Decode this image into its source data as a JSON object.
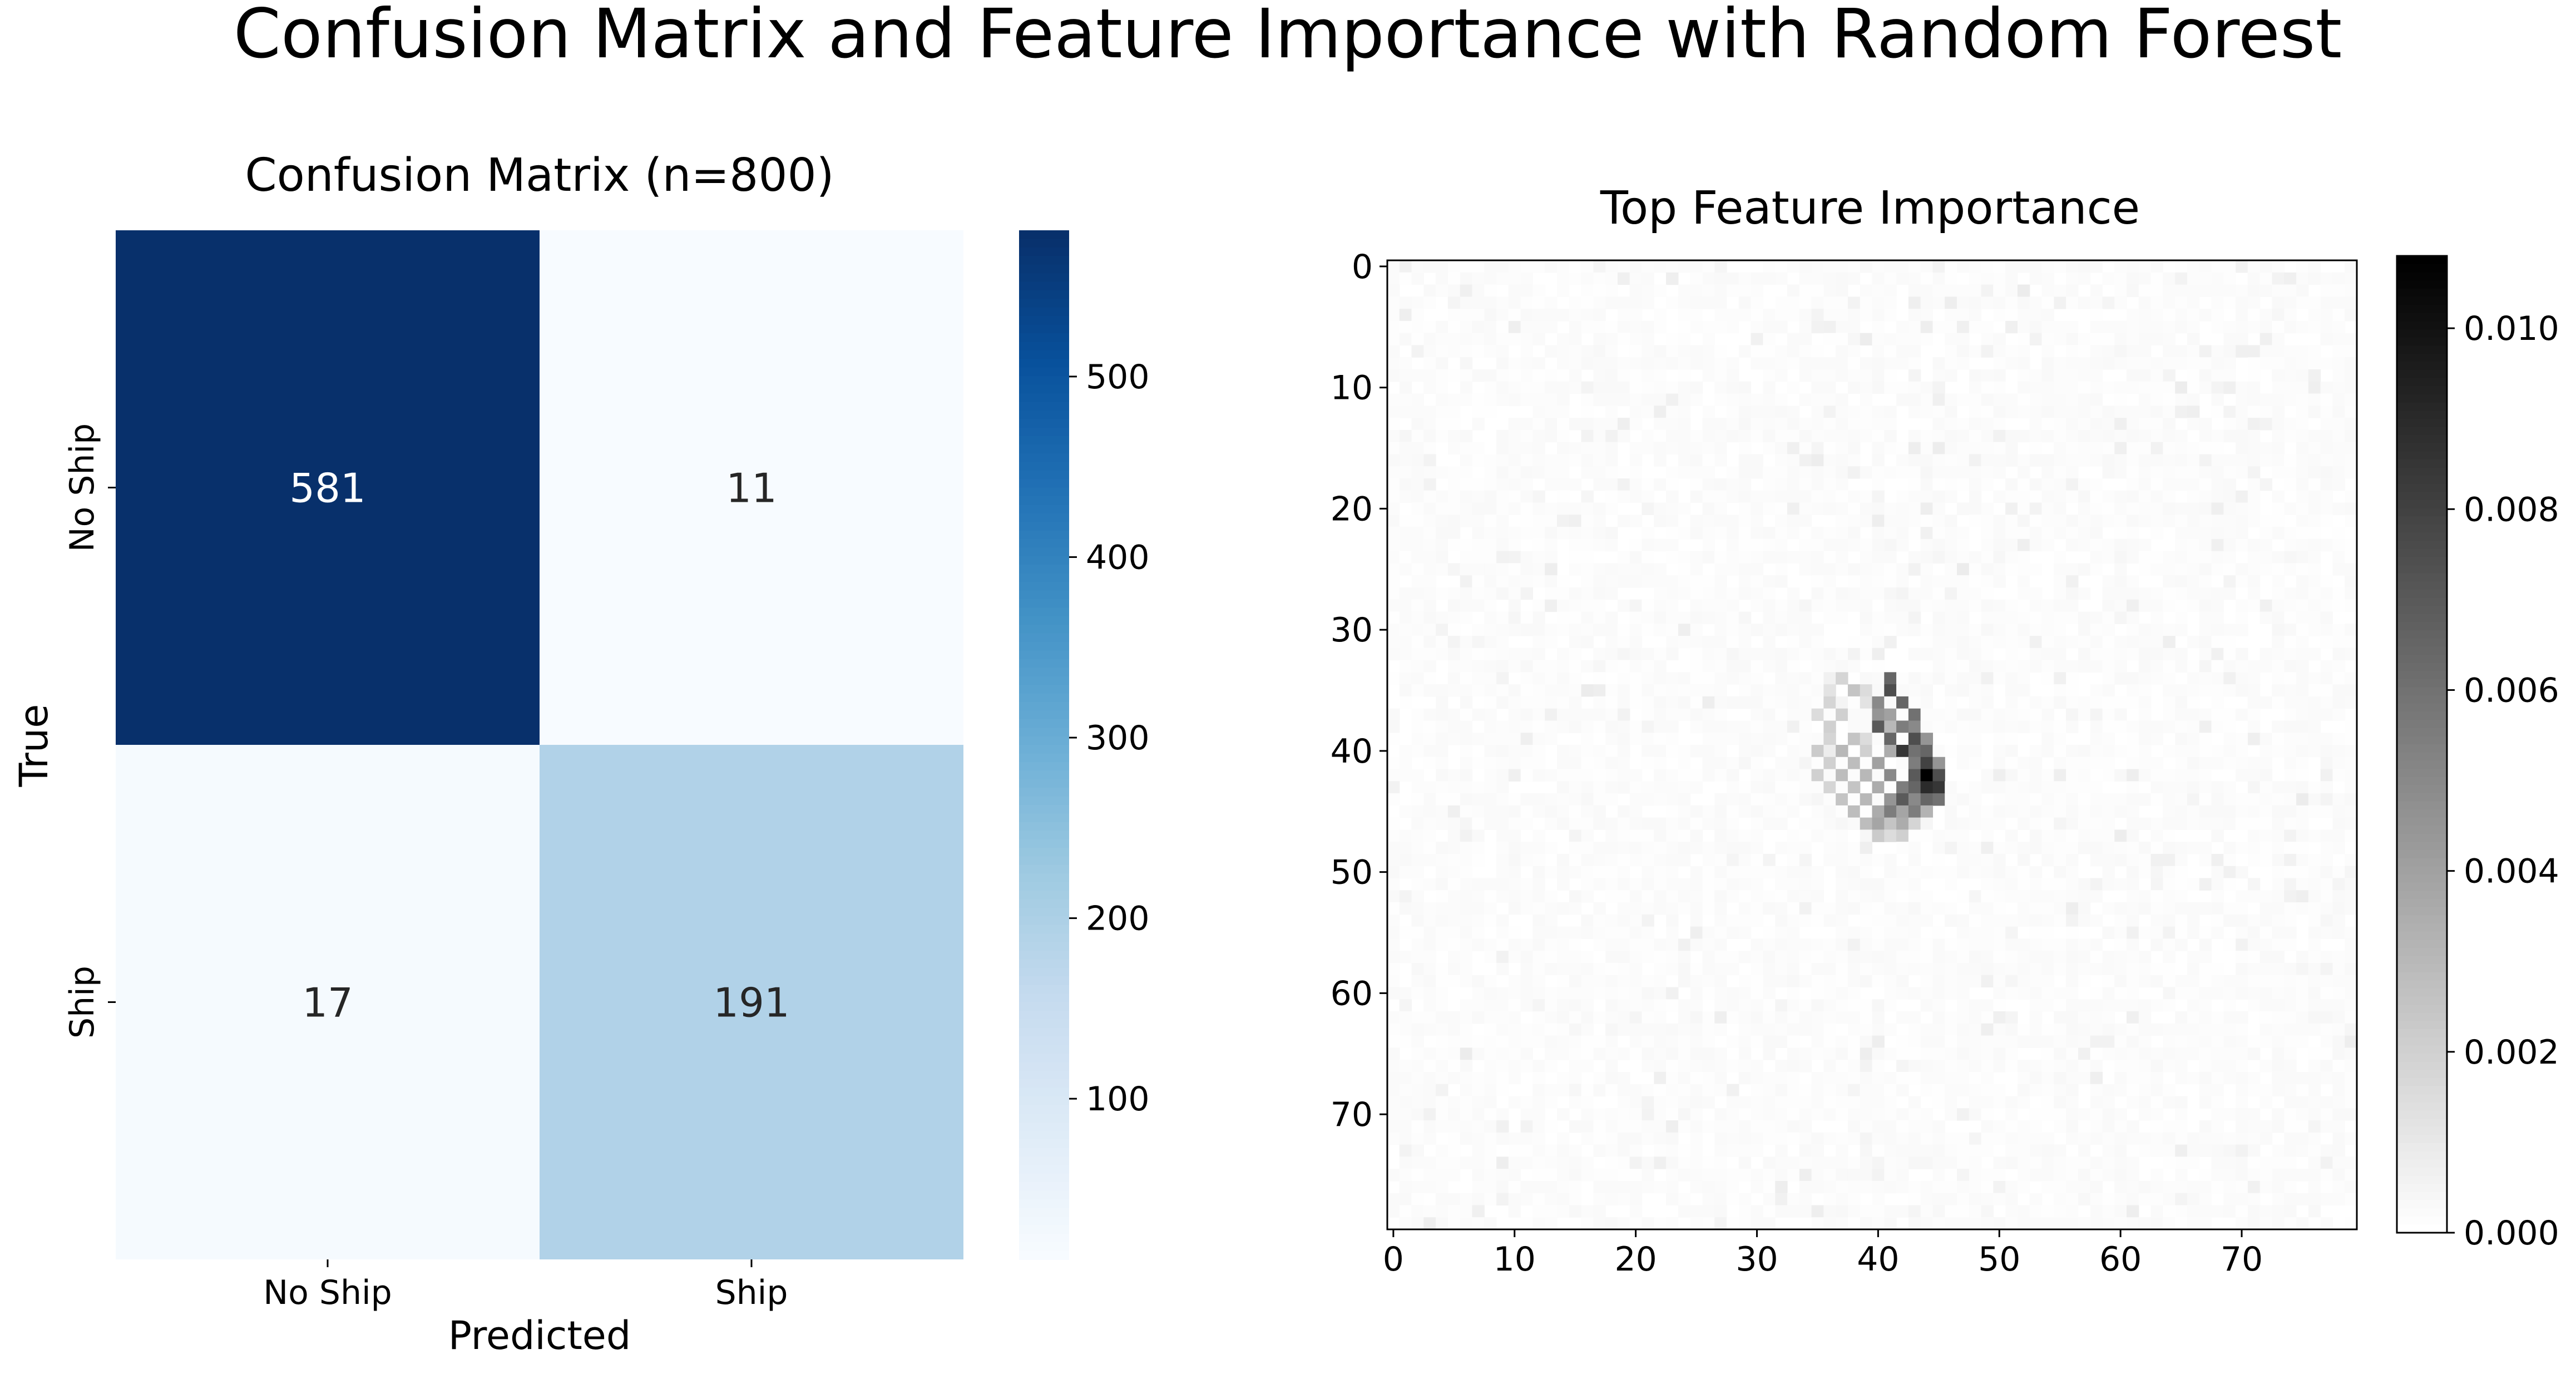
{
  "figure": {
    "title": "Confusion Matrix and Feature Importance with Random Forest"
  },
  "chart_data": [
    {
      "type": "heatmap",
      "title": "Confusion Matrix (n=800)",
      "xlabel": "Predicted",
      "ylabel": "True",
      "x_categories": [
        "No Ship",
        "Ship"
      ],
      "y_categories": [
        "No Ship",
        "Ship"
      ],
      "cells": [
        [
          581,
          11
        ],
        [
          17,
          191
        ]
      ],
      "colormap": "Blues",
      "colorbar": {
        "range": [
          11,
          581
        ],
        "ticks": [
          100,
          200,
          300,
          400,
          500
        ]
      }
    },
    {
      "type": "heatmap",
      "title": "Top Feature Importance",
      "grid_size": [
        80,
        80
      ],
      "x_ticks": [
        0,
        10,
        20,
        30,
        40,
        50,
        60,
        70
      ],
      "y_ticks": [
        0,
        10,
        20,
        30,
        40,
        50,
        60,
        70
      ],
      "colormap": "Greys",
      "colorbar": {
        "range": [
          0,
          0.0108
        ],
        "ticks": [
          "0.000",
          "0.002",
          "0.004",
          "0.006",
          "0.008",
          "0.010"
        ]
      },
      "hotspot": {
        "center": [
          42,
          41
        ],
        "peak": 0.0108
      },
      "dense_cells": [
        [
          34,
          41,
          0.0065
        ],
        [
          34,
          37,
          0.0018
        ],
        [
          35,
          41,
          0.0075
        ],
        [
          35,
          38,
          0.0025
        ],
        [
          35,
          36,
          0.0012
        ],
        [
          35,
          39,
          0.0015
        ],
        [
          36,
          40,
          0.005
        ],
        [
          36,
          42,
          0.0065
        ],
        [
          36,
          36,
          0.0018
        ],
        [
          36,
          39,
          0.0012
        ],
        [
          37,
          40,
          0.0045
        ],
        [
          37,
          43,
          0.006
        ],
        [
          37,
          41,
          0.004
        ],
        [
          37,
          37,
          0.002
        ],
        [
          37,
          35,
          0.0015
        ],
        [
          38,
          40,
          0.007
        ],
        [
          38,
          42,
          0.0055
        ],
        [
          38,
          43,
          0.005
        ],
        [
          38,
          41,
          0.003
        ],
        [
          38,
          36,
          0.002
        ],
        [
          39,
          41,
          0.0065
        ],
        [
          39,
          43,
          0.0075
        ],
        [
          39,
          44,
          0.0045
        ],
        [
          39,
          38,
          0.0025
        ],
        [
          39,
          39,
          0.0015
        ],
        [
          39,
          36,
          0.0018
        ],
        [
          40,
          42,
          0.0085
        ],
        [
          40,
          43,
          0.006
        ],
        [
          40,
          44,
          0.0065
        ],
        [
          40,
          41,
          0.0035
        ],
        [
          40,
          37,
          0.003
        ],
        [
          40,
          39,
          0.002
        ],
        [
          40,
          35,
          0.0022
        ],
        [
          41,
          43,
          0.0055
        ],
        [
          41,
          44,
          0.008
        ],
        [
          41,
          45,
          0.0045
        ],
        [
          41,
          40,
          0.004
        ],
        [
          41,
          38,
          0.0028
        ],
        [
          41,
          36,
          0.002
        ],
        [
          42,
          44,
          0.0108
        ],
        [
          42,
          43,
          0.007
        ],
        [
          42,
          45,
          0.0075
        ],
        [
          42,
          41,
          0.005
        ],
        [
          42,
          39,
          0.003
        ],
        [
          42,
          37,
          0.0028
        ],
        [
          42,
          35,
          0.002
        ],
        [
          43,
          44,
          0.009
        ],
        [
          43,
          45,
          0.0085
        ],
        [
          43,
          42,
          0.0055
        ],
        [
          43,
          43,
          0.0065
        ],
        [
          43,
          40,
          0.0035
        ],
        [
          43,
          38,
          0.0025
        ],
        [
          43,
          36,
          0.0018
        ],
        [
          44,
          42,
          0.007
        ],
        [
          44,
          44,
          0.0065
        ],
        [
          44,
          45,
          0.006
        ],
        [
          44,
          41,
          0.0045
        ],
        [
          44,
          43,
          0.005
        ],
        [
          44,
          39,
          0.003
        ],
        [
          44,
          37,
          0.0025
        ],
        [
          45,
          41,
          0.0055
        ],
        [
          45,
          43,
          0.0055
        ],
        [
          45,
          40,
          0.0035
        ],
        [
          45,
          42,
          0.0038
        ],
        [
          45,
          38,
          0.0028
        ],
        [
          45,
          44,
          0.0032
        ],
        [
          46,
          40,
          0.0038
        ],
        [
          46,
          42,
          0.0035
        ],
        [
          46,
          39,
          0.0028
        ],
        [
          46,
          41,
          0.0025
        ],
        [
          46,
          43,
          0.0018
        ],
        [
          47,
          40,
          0.0022
        ],
        [
          47,
          42,
          0.002
        ],
        [
          47,
          41,
          0.0015
        ]
      ]
    }
  ]
}
